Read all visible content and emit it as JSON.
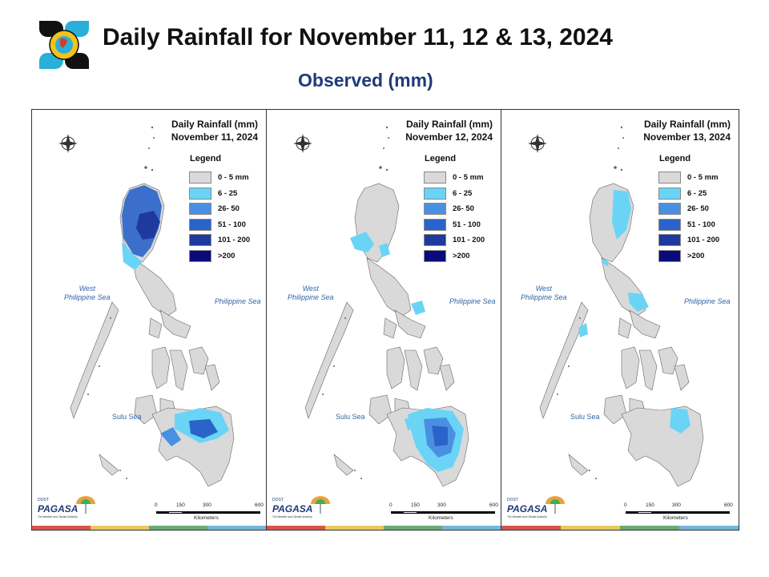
{
  "header": {
    "title": "Daily Rainfall for November 11, 12 & 13, 2024",
    "subtitle": "Observed (mm)"
  },
  "legend": {
    "title": "Legend",
    "classes": [
      {
        "label": "0 - 5 mm",
        "color": "#d9d9d9"
      },
      {
        "label": "6 - 25",
        "color": "#6ad4f7"
      },
      {
        "label": "26- 50",
        "color": "#4a90e2"
      },
      {
        "label": "51 - 100",
        "color": "#2a63c9"
      },
      {
        "label": "101 - 200",
        "color": "#1e3a9e"
      },
      {
        "label": ">200",
        "color": "#0a0a7a"
      }
    ]
  },
  "map_labels": {
    "west_sea_1": "West",
    "west_sea_2": "Philippine Sea",
    "east_sea": "Philippine Sea",
    "sulu_sea": "Sulu Sea",
    "compass_n": "N",
    "compass_s": "S",
    "compass_e": "E",
    "compass_w": "W",
    "scale_ticks": [
      "0",
      "150",
      "300",
      "600"
    ],
    "scale_unit": "Kilometers",
    "brand_name": "PAGASA",
    "brand_top": "DOST",
    "brand_tagline": "The Weather and Climate Authority"
  },
  "panels": [
    {
      "title_line1": "Daily Rainfall (mm)",
      "title_line2": "November 11, 2024"
    },
    {
      "title_line1": "Daily Rainfall (mm)",
      "title_line2": "November 12, 2024"
    },
    {
      "title_line1": "Daily Rainfall (mm)",
      "title_line2": "November 13, 2024"
    }
  ],
  "colors": {
    "land": "#d9d9d9",
    "band": [
      "#d9534f",
      "#e8c95a",
      "#6aaa74",
      "#74b6dc"
    ]
  }
}
